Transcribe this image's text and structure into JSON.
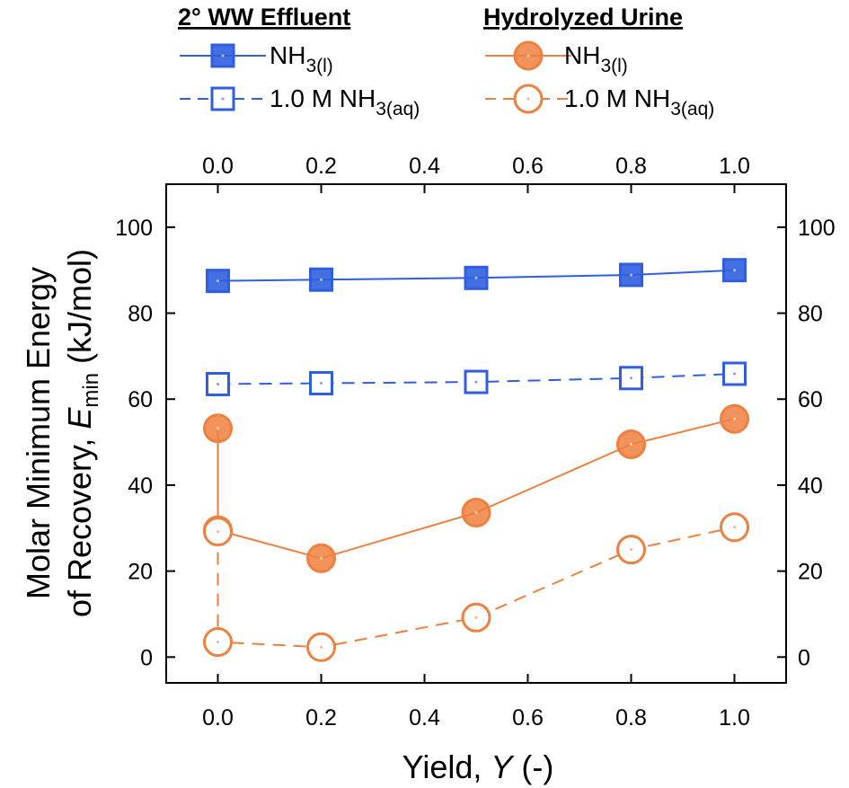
{
  "chart_data": {
    "type": "line",
    "xlabel_prefix": "Yield, ",
    "xlabel_var": "Y",
    "xlabel_suffix": " (-)",
    "ylabel_line1": "Molar Minimum Energy",
    "ylabel_line2_prefix": "of Recovery, ",
    "ylabel_var": "E",
    "ylabel_sub": "min",
    "ylabel_unit": " (kJ/mol)",
    "xlim": [
      -0.1,
      1.1
    ],
    "ylim": [
      -6,
      110
    ],
    "x_ticks": [
      "0.0",
      "0.2",
      "0.4",
      "0.6",
      "0.8",
      "1.0"
    ],
    "y_ticks": [
      "0",
      "20",
      "40",
      "60",
      "80",
      "100"
    ],
    "legend_groups": [
      {
        "title": "2° WW Effluent",
        "items": [
          {
            "label_main": "NH",
            "label_sub": "3(l)",
            "series": 0
          },
          {
            "label_main": "1.0 M NH",
            "label_sub": "3(aq)",
            "series": 1
          }
        ]
      },
      {
        "title": "Hydrolyzed Urine",
        "items": [
          {
            "label_main": "NH",
            "label_sub": "3(l)",
            "series": 2
          },
          {
            "label_main": "1.0 M NH",
            "label_sub": "3(aq)",
            "series": 3
          }
        ]
      }
    ],
    "series": [
      {
        "group": "2° WW Effluent",
        "marker": "square",
        "filled": true,
        "dashed": false,
        "color": "#2f5fe0",
        "x": [
          0.0,
          0.2,
          0.5,
          0.8,
          1.0
        ],
        "y": [
          87.5,
          87.8,
          88.2,
          88.9,
          90.0
        ]
      },
      {
        "group": "2° WW Effluent",
        "marker": "square",
        "filled": false,
        "dashed": true,
        "color": "#2f5fe0",
        "x": [
          0.0,
          0.2,
          0.5,
          0.8,
          1.0
        ],
        "y": [
          63.5,
          63.7,
          64.0,
          64.9,
          65.9
        ]
      },
      {
        "group": "Hydrolyzed Urine",
        "marker": "circle",
        "filled": true,
        "dashed": false,
        "color": "#f08040",
        "x": [
          0.0,
          0.0,
          0.2,
          0.5,
          0.8,
          1.0
        ],
        "y": [
          53.2,
          29.5,
          23.0,
          33.6,
          49.5,
          55.4
        ]
      },
      {
        "group": "Hydrolyzed Urine",
        "marker": "circle",
        "filled": false,
        "dashed": true,
        "color": "#f08040",
        "x": [
          0.0,
          0.0,
          0.2,
          0.5,
          0.8,
          1.0
        ],
        "y": [
          29.2,
          3.5,
          2.3,
          9.2,
          25.0,
          30.2
        ]
      }
    ]
  }
}
